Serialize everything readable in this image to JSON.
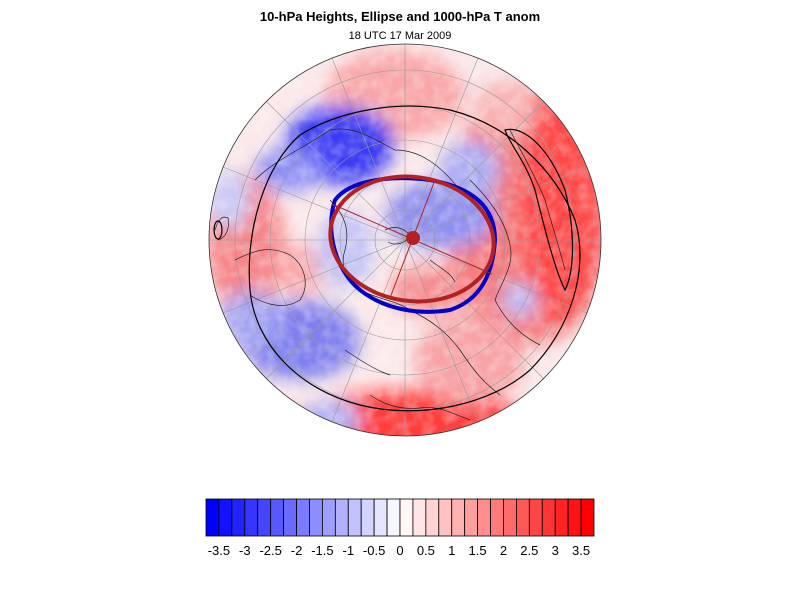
{
  "title": "10-hPa Heights, Ellipse and 1000-hPa T anom",
  "subtitle": "18 UTC 17 Mar 2009",
  "map": {
    "projection": "north-polar-stereographic",
    "field": "1000-hPa temperature anomaly",
    "overlays": [
      "10-hPa height contours",
      "vortex ellipse fit",
      "coastlines",
      "lat-lon grid"
    ],
    "colors": {
      "negative": "#0000ff",
      "positive": "#ff0000",
      "ellipse": "#b22222",
      "vortex_edge": "#0000cc",
      "contour": "#000000",
      "grid": "#9a9a9a"
    }
  },
  "colorbar": {
    "min": -3.75,
    "max": 3.75,
    "step": 0.25,
    "tick_labels": [
      "-3.5",
      "-3",
      "-2.5",
      "-2",
      "-1.5",
      "-1",
      "-0.5",
      "0",
      "0.5",
      "1",
      "1.5",
      "2",
      "2.5",
      "3",
      "3.5"
    ],
    "tick_values": [
      -3.5,
      -3,
      -2.5,
      -2,
      -1.5,
      -1,
      -0.5,
      0,
      0.5,
      1,
      1.5,
      2,
      2.5,
      3,
      3.5
    ]
  }
}
